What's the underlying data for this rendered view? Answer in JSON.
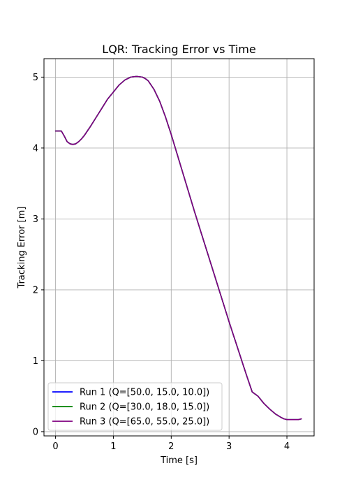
{
  "chart_data": {
    "type": "line",
    "title": "LQR: Tracking Error vs Time",
    "xlabel": "Time [s]",
    "ylabel": "Tracking Error [m]",
    "xlim": [
      -0.2,
      4.47
    ],
    "ylim": [
      -0.06,
      5.26
    ],
    "xticks": [
      0,
      1,
      2,
      3,
      4
    ],
    "yticks": [
      0,
      1,
      2,
      3,
      4,
      5
    ],
    "grid": true,
    "legend_position": "lower-left",
    "x": [
      0.0,
      0.1,
      0.15,
      0.2,
      0.25,
      0.3,
      0.35,
      0.4,
      0.45,
      0.5,
      0.6,
      0.7,
      0.8,
      0.9,
      1.0,
      1.1,
      1.2,
      1.3,
      1.4,
      1.5,
      1.55,
      1.6,
      1.7,
      1.8,
      1.9,
      2.0,
      2.1,
      2.2,
      2.3,
      2.4,
      2.5,
      2.6,
      2.7,
      2.8,
      2.9,
      3.0,
      3.1,
      3.2,
      3.3,
      3.4,
      3.5,
      3.6,
      3.7,
      3.8,
      3.9,
      3.95,
      4.0,
      4.05,
      4.1,
      4.15,
      4.2,
      4.25
    ],
    "series": [
      {
        "name": "Run 1 (Q=[50.0, 15.0, 10.0])",
        "color": "#0000ff",
        "values": [
          4.24,
          4.24,
          4.17,
          4.09,
          4.06,
          4.05,
          4.06,
          4.09,
          4.13,
          4.18,
          4.3,
          4.43,
          4.56,
          4.69,
          4.79,
          4.89,
          4.96,
          5.0,
          5.01,
          5.0,
          4.98,
          4.95,
          4.83,
          4.66,
          4.44,
          4.19,
          3.92,
          3.65,
          3.38,
          3.11,
          2.85,
          2.59,
          2.33,
          2.07,
          1.81,
          1.55,
          1.3,
          1.05,
          0.8,
          0.56,
          0.5,
          0.4,
          0.32,
          0.25,
          0.2,
          0.18,
          0.17,
          0.17,
          0.17,
          0.17,
          0.17,
          0.18
        ]
      },
      {
        "name": "Run 2 (Q=[30.0, 18.0, 15.0])",
        "color": "#008000",
        "values": [
          4.24,
          4.24,
          4.17,
          4.09,
          4.06,
          4.05,
          4.06,
          4.09,
          4.13,
          4.18,
          4.3,
          4.43,
          4.56,
          4.69,
          4.79,
          4.89,
          4.96,
          5.0,
          5.01,
          5.0,
          4.98,
          4.95,
          4.83,
          4.66,
          4.44,
          4.19,
          3.92,
          3.65,
          3.38,
          3.11,
          2.85,
          2.59,
          2.33,
          2.07,
          1.81,
          1.55,
          1.3,
          1.05,
          0.8,
          0.56,
          0.5,
          0.4,
          0.32,
          0.25,
          0.2,
          0.18,
          0.17,
          0.17,
          0.17,
          0.17,
          0.17,
          0.18
        ]
      },
      {
        "name": "Run 3 (Q=[65.0, 55.0, 25.0])",
        "color": "#800080",
        "values": [
          4.24,
          4.24,
          4.17,
          4.09,
          4.06,
          4.05,
          4.06,
          4.09,
          4.13,
          4.18,
          4.3,
          4.43,
          4.56,
          4.69,
          4.79,
          4.89,
          4.96,
          5.0,
          5.01,
          5.0,
          4.98,
          4.95,
          4.83,
          4.66,
          4.44,
          4.19,
          3.92,
          3.65,
          3.38,
          3.11,
          2.85,
          2.59,
          2.33,
          2.07,
          1.81,
          1.55,
          1.3,
          1.05,
          0.8,
          0.56,
          0.5,
          0.4,
          0.32,
          0.25,
          0.2,
          0.18,
          0.17,
          0.17,
          0.17,
          0.17,
          0.17,
          0.18
        ]
      }
    ]
  }
}
